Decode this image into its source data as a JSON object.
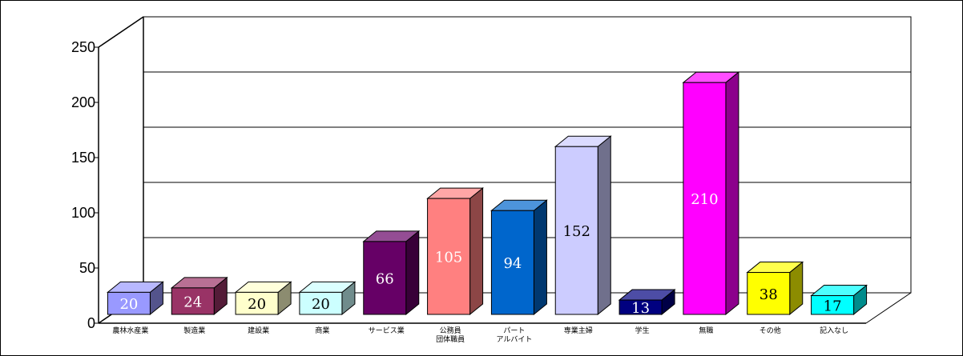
{
  "chart_data": {
    "type": "bar",
    "title": "",
    "xlabel": "",
    "ylabel": "",
    "ylim": [
      0,
      250
    ],
    "yticks": [
      "0",
      "50",
      "100",
      "150",
      "200",
      "250"
    ],
    "grid": true,
    "categories": [
      "農林水産業",
      "製造業",
      "建設業",
      "商業",
      "サービス業",
      "公務員\n団体職員",
      "パート\nアルバイト",
      "専業主婦",
      "学生",
      "無職",
      "その他",
      "記入なし"
    ],
    "values": [
      20,
      24,
      20,
      20,
      66,
      105,
      94,
      152,
      13,
      210,
      38,
      17
    ],
    "value_labels": [
      "20",
      "24",
      "20",
      "20",
      "66",
      "105",
      "94",
      "152",
      "13",
      "210",
      "38",
      "17"
    ],
    "colors": [
      "#9999ff",
      "#993366",
      "#ffffcc",
      "#ccffff",
      "#660066",
      "#ff8080",
      "#0066cc",
      "#ccccff",
      "#000080",
      "#ff00ff",
      "#ffff00",
      "#00ffff"
    ],
    "label_colors": [
      "#ffffff",
      "#ffffff",
      "#000000",
      "#000000",
      "#ffffff",
      "#ffffff",
      "#ffffff",
      "#000000",
      "#ffffff",
      "#ffffff",
      "#000000",
      "#000000"
    ]
  }
}
